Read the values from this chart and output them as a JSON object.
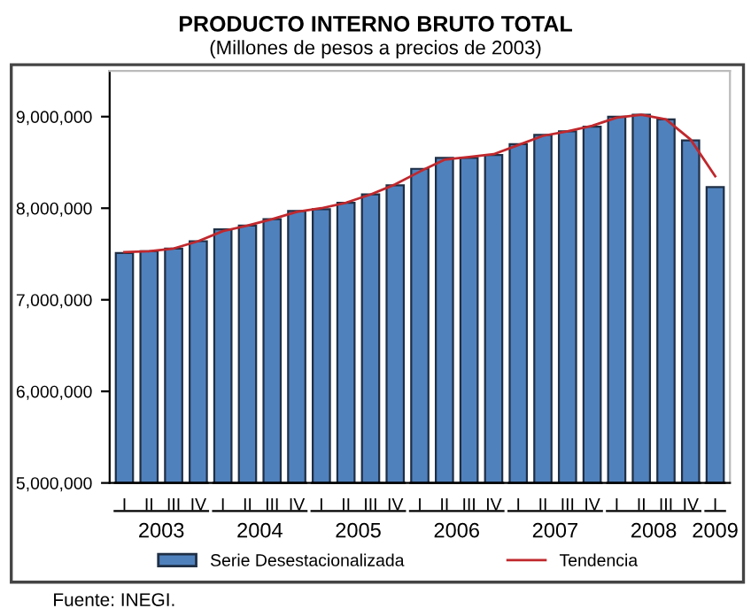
{
  "chart_data": {
    "type": "bar",
    "title": "PRODUCTO INTERNO BRUTO TOTAL",
    "subtitle": "(Millones de pesos a precios de 2003)",
    "categories": [
      "I",
      "II",
      "III",
      "IV",
      "I",
      "II",
      "III",
      "IV",
      "I",
      "II",
      "III",
      "IV",
      "I",
      "II",
      "III",
      "IV",
      "I",
      "II",
      "III",
      "IV",
      "I",
      "II",
      "III",
      "IV",
      "I"
    ],
    "series": [
      {
        "name": "Serie Desestacionalizada",
        "color": "#4f81bd",
        "values": [
          7510000,
          7530000,
          7560000,
          7640000,
          7770000,
          7810000,
          7880000,
          7970000,
          7990000,
          8060000,
          8150000,
          8250000,
          8430000,
          8550000,
          8550000,
          8580000,
          8700000,
          8800000,
          8840000,
          8890000,
          9000000,
          9020000,
          8970000,
          8740000,
          8230000
        ]
      },
      {
        "name": "Tendencia",
        "type": "line",
        "color": "#c0282d",
        "values": [
          7520000,
          7530000,
          7560000,
          7640000,
          7750000,
          7810000,
          7880000,
          7960000,
          8000000,
          8060000,
          8150000,
          8260000,
          8400000,
          8530000,
          8560000,
          8590000,
          8690000,
          8790000,
          8840000,
          8900000,
          8990000,
          9020000,
          8970000,
          8750000,
          8350000
        ]
      }
    ],
    "ylim": [
      5000000,
      9500000
    ],
    "yticks": [
      {
        "value": 5000000,
        "label": "5,000,000"
      },
      {
        "value": 6000000,
        "label": "6,000,000"
      },
      {
        "value": 7000000,
        "label": "7,000,000"
      },
      {
        "value": 8000000,
        "label": "8,000,000"
      },
      {
        "value": 9000000,
        "label": "9,000,000"
      }
    ],
    "grid": false,
    "legend": "bottom",
    "annotations": [
      "2003",
      "2004",
      "2005",
      "2006",
      "2007",
      "2008",
      "2009",
      "Fuente: INEGI."
    ]
  }
}
